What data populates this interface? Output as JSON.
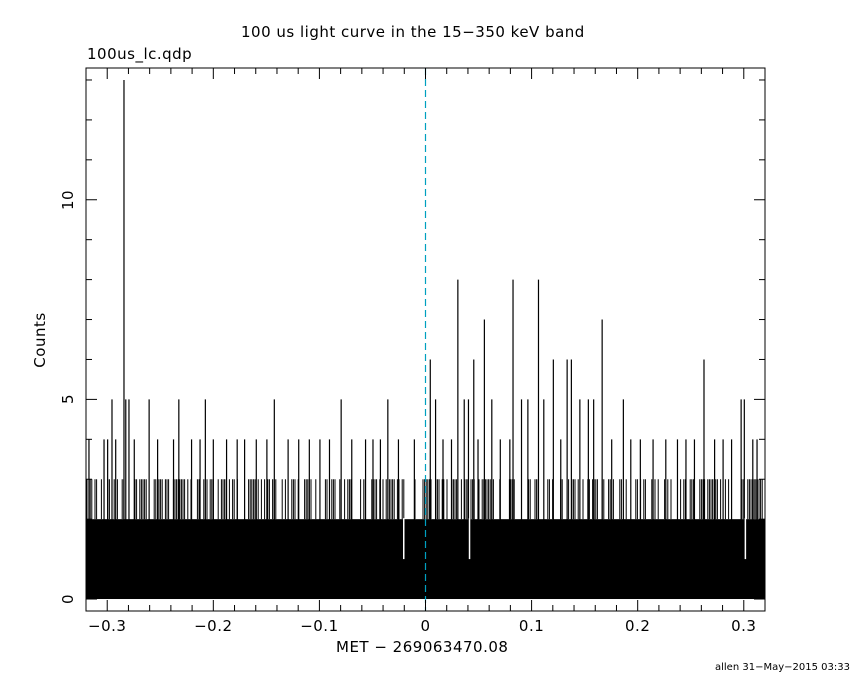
{
  "header": {
    "title": "100 us light curve in the 15−350 keV band",
    "file_label": "100us_lc.qdp"
  },
  "footer": {
    "credit": "allen 31−May−2015 03:33"
  },
  "chart_data": {
    "type": "bar",
    "title": "100 us light curve in the 15−350 keV band",
    "xlabel": "MET − 269063470.08",
    "ylabel": "Counts",
    "xlim": [
      -0.32,
      0.32
    ],
    "ylim": [
      -0.3,
      13.3
    ],
    "xticks": [
      -0.3,
      -0.2,
      -0.1,
      0,
      0.1,
      0.2,
      0.3
    ],
    "xtick_labels": [
      "−0.3",
      "−0.2",
      "−0.1",
      "0",
      "0.1",
      "0.2",
      "0.3"
    ],
    "yticks": [
      0,
      5,
      10
    ],
    "ytick_labels": [
      "0",
      "5",
      "10"
    ],
    "bin_width": 0.0001,
    "baseline_counts": 2,
    "reference_line": {
      "x": 0,
      "style": "dashed",
      "color": "#00a0c0"
    },
    "peaks": [
      {
        "x": -0.3172,
        "y": 4
      },
      {
        "x": -0.303,
        "y": 4
      },
      {
        "x": -0.2996,
        "y": 4
      },
      {
        "x": -0.2955,
        "y": 5
      },
      {
        "x": -0.292,
        "y": 4
      },
      {
        "x": -0.2842,
        "y": 13
      },
      {
        "x": -0.2825,
        "y": 5
      },
      {
        "x": -0.2795,
        "y": 5
      },
      {
        "x": -0.2745,
        "y": 4
      },
      {
        "x": -0.2605,
        "y": 5
      },
      {
        "x": -0.2525,
        "y": 4
      },
      {
        "x": -0.2375,
        "y": 4
      },
      {
        "x": -0.2325,
        "y": 5
      },
      {
        "x": -0.2205,
        "y": 4
      },
      {
        "x": -0.2125,
        "y": 4
      },
      {
        "x": -0.2075,
        "y": 5
      },
      {
        "x": -0.2,
        "y": 4
      },
      {
        "x": -0.1875,
        "y": 4
      },
      {
        "x": -0.1775,
        "y": 4
      },
      {
        "x": -0.1705,
        "y": 4
      },
      {
        "x": -0.1595,
        "y": 4
      },
      {
        "x": -0.1495,
        "y": 4
      },
      {
        "x": -0.1425,
        "y": 5
      },
      {
        "x": -0.1295,
        "y": 4
      },
      {
        "x": -0.1195,
        "y": 4
      },
      {
        "x": -0.1095,
        "y": 4
      },
      {
        "x": -0.0995,
        "y": 4
      },
      {
        "x": -0.0905,
        "y": 4
      },
      {
        "x": -0.0795,
        "y": 5
      },
      {
        "x": -0.0695,
        "y": 4
      },
      {
        "x": -0.0565,
        "y": 4
      },
      {
        "x": -0.0495,
        "y": 4
      },
      {
        "x": -0.0425,
        "y": 4
      },
      {
        "x": -0.0355,
        "y": 5
      },
      {
        "x": -0.0255,
        "y": 4
      },
      {
        "x": -0.0105,
        "y": 4
      },
      {
        "x": 0.0045,
        "y": 6
      },
      {
        "x": 0.0095,
        "y": 5
      },
      {
        "x": 0.0165,
        "y": 4
      },
      {
        "x": 0.0245,
        "y": 4
      },
      {
        "x": 0.0305,
        "y": 8
      },
      {
        "x": 0.0365,
        "y": 5
      },
      {
        "x": 0.0405,
        "y": 5
      },
      {
        "x": 0.0455,
        "y": 6
      },
      {
        "x": 0.0495,
        "y": 4
      },
      {
        "x": 0.0555,
        "y": 7
      },
      {
        "x": 0.0625,
        "y": 5
      },
      {
        "x": 0.0705,
        "y": 4
      },
      {
        "x": 0.0795,
        "y": 4
      },
      {
        "x": 0.0825,
        "y": 8
      },
      {
        "x": 0.0905,
        "y": 5
      },
      {
        "x": 0.0965,
        "y": 5
      },
      {
        "x": 0.1065,
        "y": 8
      },
      {
        "x": 0.1115,
        "y": 5
      },
      {
        "x": 0.1205,
        "y": 6
      },
      {
        "x": 0.1275,
        "y": 4
      },
      {
        "x": 0.1335,
        "y": 6
      },
      {
        "x": 0.1375,
        "y": 6
      },
      {
        "x": 0.1455,
        "y": 5
      },
      {
        "x": 0.1535,
        "y": 5
      },
      {
        "x": 0.1585,
        "y": 5
      },
      {
        "x": 0.1665,
        "y": 7
      },
      {
        "x": 0.1755,
        "y": 4
      },
      {
        "x": 0.1865,
        "y": 5
      },
      {
        "x": 0.1935,
        "y": 4
      },
      {
        "x": 0.2025,
        "y": 4
      },
      {
        "x": 0.2145,
        "y": 4
      },
      {
        "x": 0.2265,
        "y": 4
      },
      {
        "x": 0.2375,
        "y": 4
      },
      {
        "x": 0.2455,
        "y": 4
      },
      {
        "x": 0.2535,
        "y": 4
      },
      {
        "x": 0.2625,
        "y": 6
      },
      {
        "x": 0.2725,
        "y": 4
      },
      {
        "x": 0.2805,
        "y": 4
      },
      {
        "x": 0.2885,
        "y": 4
      },
      {
        "x": 0.2975,
        "y": 5
      },
      {
        "x": 0.3005,
        "y": 5
      },
      {
        "x": 0.3085,
        "y": 4
      },
      {
        "x": 0.3125,
        "y": 4
      }
    ],
    "gaps": [
      {
        "x": -0.0205,
        "y": 1
      },
      {
        "x": 0.0415,
        "y": 1
      },
      {
        "x": 0.3015,
        "y": 1
      }
    ],
    "grid": false,
    "legend": "none"
  }
}
